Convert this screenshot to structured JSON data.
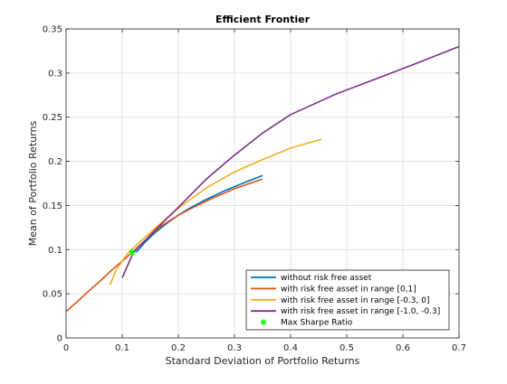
{
  "chart_data": {
    "type": "line",
    "title": "Efficient Frontier",
    "xlabel": "Standard Deviation of Portfolio Returns",
    "ylabel": "Mean of Portfolio Returns",
    "xlim": [
      0,
      0.7
    ],
    "ylim": [
      0,
      0.35
    ],
    "xticks": [
      0,
      0.1,
      0.2,
      0.3,
      0.4,
      0.5,
      0.6,
      0.7
    ],
    "yticks": [
      0,
      0.05,
      0.1,
      0.15,
      0.2,
      0.25,
      0.3,
      0.35
    ],
    "xtick_labels": [
      "0",
      "0.1",
      "0.2",
      "0.3",
      "0.4",
      "0.5",
      "0.6",
      "0.7"
    ],
    "ytick_labels": [
      "0",
      "0.05",
      "0.1",
      "0.15",
      "0.2",
      "0.25",
      "0.3",
      "0.35"
    ],
    "grid": true,
    "legend_position": "bottom-right",
    "series": [
      {
        "name": "without risk free asset",
        "color": "#0072BD",
        "x": [
          0.125,
          0.14,
          0.16,
          0.18,
          0.2,
          0.22,
          0.25,
          0.28,
          0.31,
          0.35
        ],
        "y": [
          0.097,
          0.108,
          0.12,
          0.13,
          0.139,
          0.147,
          0.157,
          0.166,
          0.174,
          0.184
        ]
      },
      {
        "name": "with risk free asset in range [0,1]",
        "color": "#D95319",
        "x": [
          0,
          0.02,
          0.04,
          0.06,
          0.08,
          0.1,
          0.118,
          0.13,
          0.15,
          0.17,
          0.2,
          0.23,
          0.26,
          0.3,
          0.35
        ],
        "y": [
          0.03,
          0.041,
          0.053,
          0.064,
          0.076,
          0.087,
          0.097,
          0.104,
          0.116,
          0.127,
          0.139,
          0.149,
          0.158,
          0.169,
          0.18
        ]
      },
      {
        "name": "with risk free asset in range [-0.3, 0]",
        "color": "#EDB120",
        "x": [
          0.078,
          0.09,
          0.11,
          0.13,
          0.16,
          0.2,
          0.25,
          0.3,
          0.35,
          0.4,
          0.455
        ],
        "y": [
          0.06,
          0.078,
          0.096,
          0.108,
          0.125,
          0.147,
          0.17,
          0.188,
          0.202,
          0.215,
          0.225
        ]
      },
      {
        "name": "with risk free asset in range [-1.0, -0.3]",
        "color": "#7E2F8E",
        "x": [
          0.1,
          0.12,
          0.14,
          0.16,
          0.2,
          0.25,
          0.3,
          0.35,
          0.4,
          0.48,
          0.55,
          0.62,
          0.7
        ],
        "y": [
          0.068,
          0.097,
          0.11,
          0.123,
          0.148,
          0.18,
          0.207,
          0.232,
          0.253,
          0.276,
          0.293,
          0.31,
          0.33
        ]
      },
      {
        "name": "Max Sharpe Ratio",
        "type": "marker",
        "marker": "asterisk",
        "color": "#00FF00",
        "x": [
          0.118
        ],
        "y": [
          0.097
        ]
      }
    ]
  }
}
